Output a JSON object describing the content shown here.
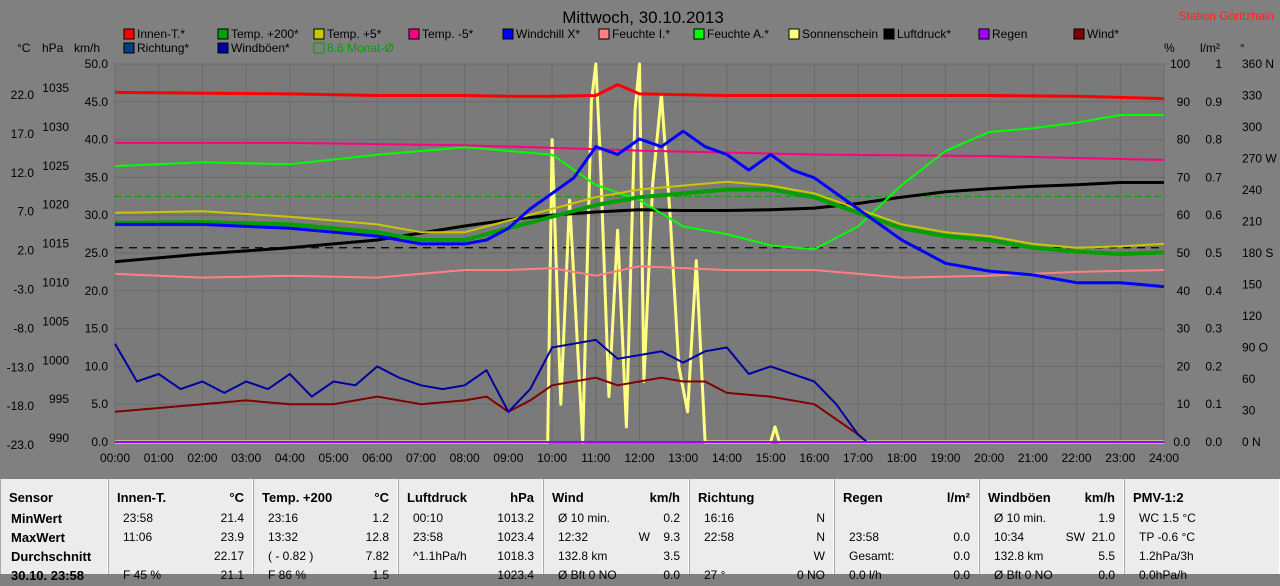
{
  "title": "Mittwoch, 30.10.2013",
  "station": "Station Göritzhain",
  "left_units": [
    "°C",
    "hPa",
    "km/h"
  ],
  "right_units": [
    "%",
    "l/m²",
    "°"
  ],
  "legend": [
    {
      "label": "Innen-T.*",
      "color": "#ff0000"
    },
    {
      "label": "Temp. +200*",
      "color": "#00a000"
    },
    {
      "label": "Temp. +5*",
      "color": "#c8c800"
    },
    {
      "label": "Temp. -5*",
      "color": "#ff0080"
    },
    {
      "label": "Windchill X*",
      "color": "#0000ff"
    },
    {
      "label": "Feuchte I.*",
      "color": "#ff8080"
    },
    {
      "label": "Feuchte A.*",
      "color": "#00ff00"
    },
    {
      "label": "Sonnenschein",
      "color": "#ffff80"
    },
    {
      "label": "Luftdruck*",
      "color": "#000000"
    },
    {
      "label": "Regen",
      "color": "#a000ff"
    },
    {
      "label": "Wind*",
      "color": "#800000"
    },
    {
      "label": "Richtung*",
      "color": "#004080"
    },
    {
      "label": "Windböen*",
      "color": "#0000a0"
    },
    {
      "label": "8.6 Monat-Ø",
      "color": "#00a000"
    }
  ],
  "chart_data": {
    "type": "line",
    "title": "Mittwoch, 30.10.2013",
    "x_ticks": [
      "00:00",
      "01:00",
      "02:00",
      "03:00",
      "04:00",
      "05:00",
      "06:00",
      "07:00",
      "08:00",
      "09:00",
      "10:00",
      "11:00",
      "12:00",
      "13:00",
      "14:00",
      "15:00",
      "16:00",
      "17:00",
      "18:00",
      "19:00",
      "20:00",
      "21:00",
      "22:00",
      "23:00",
      "24:00"
    ],
    "axes": {
      "temp_c": {
        "ticks": [
          "22.0",
          "17.0",
          "12.0",
          "7.0",
          "2.0",
          "-3.0",
          "-8.0",
          "-13.0",
          "-18.0",
          "-23.0"
        ],
        "range": [
          -23,
          25
        ]
      },
      "pressure_hpa": {
        "ticks": [
          "1035",
          "1030",
          "1025",
          "1020",
          "1015",
          "1010",
          "1005",
          "1000",
          "995",
          "990"
        ],
        "range": [
          990,
          1038
        ]
      },
      "wind_kmh": {
        "ticks": [
          "50.0",
          "45.0",
          "40.0",
          "35.0",
          "30.0",
          "25.0",
          "20.0",
          "15.0",
          "10.0",
          "5.0",
          "0.0"
        ],
        "range": [
          0,
          50
        ]
      },
      "humidity_pct": {
        "ticks": [
          "100",
          "90",
          "80",
          "70",
          "60",
          "50",
          "40",
          "30",
          "20",
          "10",
          "0.0"
        ],
        "range": [
          0,
          100
        ]
      },
      "rain_lm2": {
        "ticks": [
          "1",
          "0.9",
          "0.8",
          "0.7",
          "0.6",
          "0.5",
          "0.4",
          "0.3",
          "0.2",
          "0.1",
          "0.0"
        ],
        "range": [
          0,
          1
        ]
      },
      "direction_deg": {
        "ticks": [
          "360 N",
          "330",
          "300",
          "270 W",
          "240",
          "210",
          "180 S",
          "150",
          "120",
          "90 O",
          "60",
          "30",
          "0 N"
        ],
        "range": [
          0,
          360
        ]
      }
    },
    "grid": true,
    "month_avg_temp": 8.6,
    "series": [
      {
        "name": "Innen-T.*",
        "axis": "temp_c",
        "x": [
          0,
          2,
          4,
          6,
          8,
          9,
          10,
          11,
          11.5,
          12,
          14,
          16,
          18,
          20,
          22,
          24
        ],
        "y": [
          22.0,
          21.9,
          21.8,
          21.6,
          21.6,
          21.5,
          21.5,
          21.6,
          23.0,
          21.8,
          21.6,
          21.6,
          21.6,
          21.6,
          21.5,
          21.2
        ]
      },
      {
        "name": "Temp. +200*",
        "axis": "temp_c",
        "x": [
          0,
          2,
          4,
          6,
          7,
          8,
          9,
          10,
          11,
          12,
          13,
          14,
          15,
          16,
          17,
          18,
          19,
          20,
          21,
          22,
          23,
          24
        ],
        "y": [
          5.2,
          5.3,
          5.0,
          4.0,
          3.0,
          3.0,
          4.5,
          6.0,
          7.5,
          8.5,
          9.0,
          9.5,
          9.5,
          8.5,
          6.5,
          4.5,
          3.5,
          3.0,
          2.0,
          1.5,
          1.2,
          1.4
        ]
      },
      {
        "name": "Temp. +5*",
        "axis": "temp_c",
        "x": [
          0,
          2,
          4,
          6,
          7,
          8,
          9,
          10,
          11,
          12,
          13,
          14,
          15,
          16,
          17,
          18,
          19,
          20,
          21,
          22,
          23,
          24
        ],
        "y": [
          6.5,
          6.7,
          6.0,
          5.0,
          4.0,
          4.0,
          5.5,
          7.0,
          8.5,
          9.5,
          10.0,
          10.5,
          10.0,
          9.0,
          7.0,
          5.0,
          4.0,
          3.5,
          2.5,
          2.0,
          2.2,
          2.5
        ]
      },
      {
        "name": "Temp. -5*",
        "axis": "temp_c",
        "x": [
          0,
          4,
          8,
          12,
          16,
          20,
          24
        ],
        "y": [
          15.5,
          15.5,
          15.2,
          14.5,
          14.0,
          13.8,
          13.3
        ]
      },
      {
        "name": "Windchill X*",
        "axis": "temp_c",
        "x": [
          0,
          2,
          4,
          6,
          7,
          8,
          8.5,
          9,
          9.5,
          10,
          10.5,
          11,
          11.5,
          12,
          12.5,
          13,
          13.5,
          14,
          14.5,
          15,
          15.5,
          16,
          17,
          18,
          19,
          20,
          21,
          22,
          23,
          24
        ],
        "y": [
          5.0,
          5.0,
          4.5,
          3.5,
          2.5,
          2.5,
          3.0,
          4.5,
          7.0,
          9.0,
          11.0,
          15.0,
          14.0,
          16.0,
          15.0,
          17.0,
          15.0,
          14.0,
          12.0,
          14.0,
          12.0,
          11.0,
          7.0,
          3.0,
          0.0,
          -1.0,
          -1.5,
          -2.5,
          -2.5,
          -3.0
        ]
      },
      {
        "name": "Feuchte I.*",
        "axis": "humidity_pct",
        "x": [
          0,
          2,
          4,
          6,
          8,
          9,
          10,
          11,
          12,
          14,
          16,
          18,
          20,
          22,
          24
        ],
        "y": [
          44.5,
          43.5,
          44.0,
          43.5,
          45.5,
          45.5,
          46.0,
          44.0,
          46.5,
          45.5,
          45.5,
          43.5,
          44.0,
          45.0,
          45.5
        ]
      },
      {
        "name": "Feuchte A.*",
        "axis": "humidity_pct",
        "x": [
          0,
          2,
          4,
          6,
          8,
          9,
          10,
          11,
          12,
          13,
          14,
          15,
          16,
          17,
          18,
          19,
          20,
          21,
          22,
          23,
          24
        ],
        "y": [
          73.0,
          74.0,
          73.5,
          76.0,
          78.0,
          77.0,
          76.0,
          68.0,
          64.0,
          57.0,
          55.0,
          52.0,
          51.0,
          57.0,
          68.0,
          77.0,
          82.0,
          83.0,
          84.5,
          86.5,
          86.5
        ]
      },
      {
        "name": "Sonnenschein",
        "axis": "wind_kmh",
        "x": [
          0,
          9.9,
          10.0,
          10.2,
          10.4,
          10.7,
          10.9,
          11.0,
          11.1,
          11.3,
          11.5,
          11.7,
          11.9,
          12.0,
          12.1,
          12.3,
          12.5,
          12.7,
          12.9,
          13.1,
          13.3,
          13.5,
          13.7,
          14.0,
          15.0,
          15.1,
          15.2,
          24
        ],
        "y": [
          0,
          0,
          40,
          5,
          32,
          0,
          45,
          50,
          38,
          6,
          28,
          2,
          44,
          50,
          8,
          34,
          46,
          30,
          10,
          4,
          24,
          0,
          0,
          0,
          0,
          2,
          0,
          0
        ]
      },
      {
        "name": "Luftdruck*",
        "axis": "pressure_hpa",
        "x": [
          0,
          2,
          4,
          6,
          8,
          9,
          10,
          11,
          12,
          13,
          14,
          15,
          16,
          17,
          18,
          19,
          20,
          21,
          22,
          23,
          24
        ],
        "y": [
          1013.2,
          1014.2,
          1015.0,
          1016.0,
          1017.8,
          1018.6,
          1019.2,
          1019.6,
          1019.9,
          1019.8,
          1019.8,
          1019.9,
          1020.1,
          1020.7,
          1021.5,
          1022.2,
          1022.6,
          1022.9,
          1023.1,
          1023.4,
          1023.4
        ]
      },
      {
        "name": "Wind*",
        "axis": "wind_kmh",
        "x": [
          0,
          1,
          2,
          3,
          4,
          5,
          6,
          7,
          8,
          8.5,
          9,
          9.5,
          10,
          10.5,
          11,
          11.5,
          12,
          12.5,
          13,
          13.5,
          14,
          15,
          16,
          16.5,
          17,
          17.2,
          24
        ],
        "y": [
          4.0,
          4.5,
          5.0,
          5.5,
          5.0,
          5.0,
          6.0,
          5.0,
          5.5,
          6.0,
          4.0,
          5.5,
          7.5,
          8.0,
          8.5,
          7.5,
          8.0,
          8.5,
          8.0,
          8.0,
          6.5,
          6.0,
          5.0,
          3.0,
          1.0,
          0,
          0
        ]
      },
      {
        "name": "Windböen*",
        "axis": "wind_kmh",
        "x": [
          0,
          0.5,
          1,
          1.5,
          2,
          2.5,
          3,
          3.5,
          4,
          4.5,
          5,
          5.5,
          6,
          6.5,
          7,
          7.5,
          8,
          8.5,
          9,
          9.5,
          10,
          10.5,
          11,
          11.5,
          12,
          12.5,
          13,
          13.5,
          14,
          14.5,
          15,
          15.5,
          16,
          16.5,
          17,
          17.2,
          24
        ],
        "y": [
          13.0,
          8.0,
          9.0,
          7.0,
          8.0,
          6.5,
          8.0,
          7.0,
          9.0,
          6.0,
          8.0,
          7.5,
          10.0,
          8.5,
          7.5,
          7.0,
          7.5,
          9.5,
          4.0,
          7.0,
          12.5,
          13.0,
          13.5,
          11.0,
          11.5,
          12.0,
          10.5,
          12.0,
          12.5,
          9.0,
          10.0,
          9.0,
          8.0,
          5.0,
          1.0,
          0,
          0
        ]
      },
      {
        "name": "Regen",
        "axis": "rain_lm2",
        "x": [
          0,
          24
        ],
        "y": [
          0,
          0
        ]
      }
    ]
  },
  "table": [
    {
      "header": "Sensor",
      "unit": "",
      "rows": [
        [
          "MinWert",
          "",
          ""
        ],
        [
          "MaxWert",
          "",
          ""
        ],
        [
          "Durchschnitt",
          "",
          ""
        ],
        [
          "30.10. 23:58",
          "",
          ""
        ]
      ]
    },
    {
      "header": "Innen-T.",
      "unit": "°C",
      "rows": [
        [
          "23:58",
          "",
          "21.4"
        ],
        [
          "11:06",
          "",
          "23.9"
        ],
        [
          "",
          "",
          "22.17"
        ],
        [
          "F 45 %",
          "",
          "21.1"
        ]
      ]
    },
    {
      "header": "Temp. +200",
      "unit": "°C",
      "rows": [
        [
          "23:16",
          "",
          "1.2"
        ],
        [
          "13:32",
          "",
          "12.8"
        ],
        [
          "( - 0.82 )",
          "",
          "7.82"
        ],
        [
          "F 86 %",
          "",
          "1.5"
        ]
      ]
    },
    {
      "header": "Luftdruck",
      "unit": "hPa",
      "rows": [
        [
          "00:10",
          "",
          "1013.2"
        ],
        [
          "23:58",
          "",
          "1023.4"
        ],
        [
          "^1.1hPa/h",
          "",
          "1018.3"
        ],
        [
          "",
          "",
          "1023.4"
        ]
      ]
    },
    {
      "header": "Wind",
      "unit": "km/h",
      "rows": [
        [
          "Ø 10 min.",
          "",
          "0.2"
        ],
        [
          "12:32",
          "W",
          "9.3"
        ],
        [
          "132.8 km",
          "",
          "3.5"
        ],
        [
          "Ø Bft 0 NO",
          "",
          "0.0"
        ]
      ]
    },
    {
      "header": "Richtung",
      "unit": "",
      "rows": [
        [
          "16:16",
          "",
          "N"
        ],
        [
          "22:58",
          "",
          "N"
        ],
        [
          "",
          "",
          "W"
        ],
        [
          "27 °",
          "",
          "0 NO"
        ]
      ]
    },
    {
      "header": "Regen",
      "unit": "l/m²",
      "rows": [
        [
          "",
          "",
          ""
        ],
        [
          "23:58",
          "",
          "0.0"
        ],
        [
          "Gesamt:",
          "",
          "0.0"
        ],
        [
          "0.0 l/h",
          "",
          "0.0"
        ]
      ]
    },
    {
      "header": "Windböen",
      "unit": "km/h",
      "rows": [
        [
          "Ø 10 min.",
          "",
          "1.9"
        ],
        [
          "10:34",
          "SW",
          "21.0"
        ],
        [
          "132.8 km",
          "",
          "5.5"
        ],
        [
          "Ø Bft 0 NO",
          "",
          "0.0"
        ]
      ]
    },
    {
      "header": "PMV-1:2",
      "unit": "",
      "rows": [
        [
          "WC 1.5 °C",
          "",
          ""
        ],
        [
          "TP -0.6 °C",
          "",
          ""
        ],
        [
          "1.2hPa/3h",
          "",
          ""
        ],
        [
          "0.0hPa/h",
          "",
          ""
        ]
      ]
    }
  ]
}
